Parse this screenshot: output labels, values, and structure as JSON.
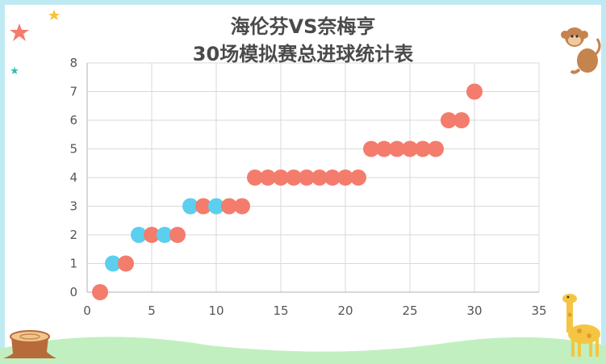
{
  "chart_data": {
    "type": "scatter",
    "title_line1": "海伦芬VS奈梅亨",
    "title_line2": "30场模拟赛总进球统计表",
    "xlim": [
      0,
      35
    ],
    "ylim": [
      0,
      8
    ],
    "x_ticks": [
      0,
      5,
      10,
      15,
      20,
      25,
      30,
      35
    ],
    "y_ticks": [
      0,
      1,
      2,
      3,
      4,
      5,
      6,
      7,
      8
    ],
    "grid": true,
    "colors": {
      "salmon": "#f47c6c",
      "cyan": "#5ccfef"
    },
    "points": [
      {
        "x": 1,
        "y": 0,
        "color": "salmon"
      },
      {
        "x": 2,
        "y": 1,
        "color": "cyan"
      },
      {
        "x": 3,
        "y": 1,
        "color": "salmon"
      },
      {
        "x": 4,
        "y": 2,
        "color": "cyan"
      },
      {
        "x": 5,
        "y": 2,
        "color": "salmon"
      },
      {
        "x": 6,
        "y": 2,
        "color": "cyan"
      },
      {
        "x": 7,
        "y": 2,
        "color": "salmon"
      },
      {
        "x": 8,
        "y": 3,
        "color": "cyan"
      },
      {
        "x": 9,
        "y": 3,
        "color": "salmon"
      },
      {
        "x": 10,
        "y": 3,
        "color": "cyan"
      },
      {
        "x": 11,
        "y": 3,
        "color": "salmon"
      },
      {
        "x": 12,
        "y": 3,
        "color": "salmon"
      },
      {
        "x": 13,
        "y": 4,
        "color": "salmon"
      },
      {
        "x": 14,
        "y": 4,
        "color": "salmon"
      },
      {
        "x": 15,
        "y": 4,
        "color": "salmon"
      },
      {
        "x": 16,
        "y": 4,
        "color": "salmon"
      },
      {
        "x": 17,
        "y": 4,
        "color": "salmon"
      },
      {
        "x": 18,
        "y": 4,
        "color": "salmon"
      },
      {
        "x": 19,
        "y": 4,
        "color": "salmon"
      },
      {
        "x": 20,
        "y": 4,
        "color": "salmon"
      },
      {
        "x": 21,
        "y": 4,
        "color": "salmon"
      },
      {
        "x": 22,
        "y": 5,
        "color": "salmon"
      },
      {
        "x": 23,
        "y": 5,
        "color": "salmon"
      },
      {
        "x": 24,
        "y": 5,
        "color": "salmon"
      },
      {
        "x": 25,
        "y": 5,
        "color": "salmon"
      },
      {
        "x": 26,
        "y": 5,
        "color": "salmon"
      },
      {
        "x": 27,
        "y": 5,
        "color": "salmon"
      },
      {
        "x": 28,
        "y": 6,
        "color": "salmon"
      },
      {
        "x": 29,
        "y": 6,
        "color": "salmon"
      },
      {
        "x": 30,
        "y": 7,
        "color": "salmon"
      }
    ]
  },
  "decor": {
    "frame_color": "#bfeaf3",
    "ground_color": "#c2efc0",
    "icons": [
      "star-icon",
      "monkey-icon",
      "giraffe-icon",
      "tree-stump-icon"
    ]
  }
}
